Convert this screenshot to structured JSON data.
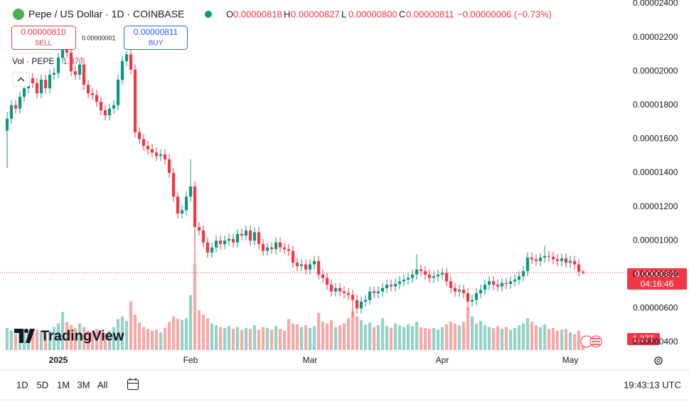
{
  "header": {
    "title": "Pepe / US Dollar · 1D · COINBASE",
    "ohlc": [
      {
        "label": "O",
        "value": "0.00000818"
      },
      {
        "label": "H",
        "value": "0.00000827"
      },
      {
        "label": "L",
        "value": "0.00000800"
      },
      {
        "label": "C",
        "value": "0.00000811"
      }
    ],
    "change": "−0.00000006 (−0.73%)"
  },
  "trade": {
    "sell_price": "0.00000810",
    "sell": "SELL",
    "spread": "0.00000001",
    "buy_price": "0.00000811",
    "buy": "BUY"
  },
  "volume_legend": {
    "label": "Vol · PEPE",
    "value": "1.37T"
  },
  "price_tag": {
    "price": "0.00000811",
    "countdown": "04:16:46"
  },
  "logo": "TradingView",
  "toolbar": {
    "ranges": [
      "1D",
      "5D",
      "1M",
      "3M",
      "All"
    ],
    "time": "19:43:13 UTC"
  },
  "chart_data": {
    "type": "candlestick",
    "up_color": "#089981",
    "down_color": "#f23645",
    "grid": false,
    "ylim": [
      3.54e-06,
      2.421e-05
    ],
    "yticks": [
      {
        "value": 4e-06,
        "label": "0.00000400"
      },
      {
        "value": 6e-06,
        "label": "0.00000600"
      },
      {
        "value": 8e-06,
        "label": "0.00000800"
      },
      {
        "value": 1e-05,
        "label": "0.00001000"
      },
      {
        "value": 1.2e-05,
        "label": "0.00001200"
      },
      {
        "value": 1.4e-05,
        "label": "0.00001400"
      },
      {
        "value": 1.6e-05,
        "label": "0.00001600"
      },
      {
        "value": 1.8e-05,
        "label": "0.00001800"
      },
      {
        "value": 2e-05,
        "label": "0.00002000"
      },
      {
        "value": 2.2e-05,
        "label": "0.00002200"
      },
      {
        "value": 2.4e-05,
        "label": "0.00002400"
      }
    ],
    "xlim": [
      -1.67,
      145
    ],
    "xticks": [
      {
        "value": 12,
        "label": "2025"
      },
      {
        "value": 43,
        "label": "Feb"
      },
      {
        "value": 71,
        "label": "Mar"
      },
      {
        "value": 102,
        "label": "Apr"
      },
      {
        "value": 132,
        "label": "May"
      }
    ],
    "open": [
      1.65e-05,
      1.72e-05,
      1.8e-05,
      1.78e-05,
      1.85e-05,
      1.9e-05,
      1.96e-05,
      1.93e-05,
      1.87e-05,
      1.95e-05,
      1.9e-05,
      1.98e-05,
      1.99e-05,
      2.08e-05,
      2.16e-05,
      2.11e-05,
      2e-05,
      1.98e-05,
      2.04e-05,
      1.92e-05,
      1.87e-05,
      1.86e-05,
      1.82e-05,
      1.77e-05,
      1.74e-05,
      1.78e-05,
      1.8e-05,
      1.95e-05,
      2.06e-05,
      2.1e-05,
      2.01e-05,
      1.64e-05,
      1.6e-05,
      1.56e-05,
      1.54e-05,
      1.52e-05,
      1.5e-05,
      1.51e-05,
      1.48e-05,
      1.4e-05,
      1.26e-05,
      1.16e-05,
      1.18e-05,
      1.26e-05,
      1.32e-05,
      1.08e-05,
      1.06e-05,
      9.9e-06,
      9.3e-06,
      9.6e-06,
      1e-05,
      9.8e-06,
      1e-05,
      1.01e-05,
      9.9e-06,
      1.04e-05,
      1.03e-05,
      1.06e-05,
      1e-05,
      1.05e-05,
      9.8e-06,
      9.4e-06,
      9.6e-06,
      9.5e-06,
      9.9e-06,
      9.6e-06,
      9.5e-06,
      9.4e-06,
      8.7e-06,
      8.5e-06,
      8.6e-06,
      8.3e-06,
      8.6e-06,
      8.8e-06,
      8e-06,
      7.8e-06,
      7.4e-06,
      7e-06,
      7.2e-06,
      7e-06,
      6.9e-06,
      6.8e-06,
      6.5e-06,
      6e-06,
      6.4e-06,
      6.5e-06,
      7e-06,
      6.9e-06,
      7e-06,
      7.2e-06,
      7.4e-06,
      7.3e-06,
      7.45e-06,
      7.6e-06,
      7.7e-06,
      7.8e-06,
      8e-06,
      8.3e-06,
      8.2e-06,
      8e-06,
      7.8e-06,
      7.9e-06,
      8e-06,
      8.1e-06,
      7.6e-06,
      7.2e-06,
      7e-06,
      7.1e-06,
      6.9e-06,
      6.4e-06,
      6.5e-06,
      6.9e-06,
      7.1e-06,
      7.4e-06,
      7.6e-06,
      7.4e-06,
      7.3e-06,
      7.5e-06,
      7.45e-06,
      7.6e-06,
      7.7e-06,
      7.9e-06,
      8.2e-06,
      9e-06,
      8.9e-06,
      8.8e-06,
      9e-06,
      9.1e-06,
      9.05e-06,
      8.9e-06,
      8.8e-06,
      8.95e-06,
      8.7e-06,
      8.8e-06,
      8.6e-06,
      8.18e-06
    ],
    "high": [
      1.76e-05,
      1.83e-05,
      1.83e-05,
      1.88e-05,
      1.93e-05,
      1.99e-05,
      1.99e-05,
      1.96e-05,
      1.98e-05,
      1.98e-05,
      2.01e-05,
      2.02e-05,
      2.11e-05,
      2.2e-05,
      2.19e-05,
      2.14e-05,
      2.03e-05,
      2.07e-05,
      2.07e-05,
      1.95e-05,
      1.9e-05,
      1.89e-05,
      1.85e-05,
      1.8e-05,
      1.81e-05,
      1.83e-05,
      1.98e-05,
      2.09e-05,
      2.12e-05,
      2.13e-05,
      2.04e-05,
      1.67e-05,
      1.63e-05,
      1.59e-05,
      1.57e-05,
      1.55e-05,
      1.54e-05,
      1.54e-05,
      1.51e-05,
      1.43e-05,
      1.29e-05,
      1.21e-05,
      1.29e-05,
      1.48e-05,
      1.35e-05,
      1.11e-05,
      1.09e-05,
      1.02e-05,
      9.9e-06,
      1.03e-05,
      1.03e-05,
      1.03e-05,
      1.04e-05,
      1.04e-05,
      1.07e-05,
      1.07e-05,
      1.09e-05,
      1.09e-05,
      1.08e-05,
      1.08e-05,
      1.01e-05,
      9.9e-06,
      9.9e-06,
      1.02e-05,
      1.02e-05,
      9.9e-06,
      9.8e-06,
      9.7e-06,
      9e-06,
      8.9e-06,
      8.9e-06,
      8.9e-06,
      9.1e-06,
      9.1e-06,
      8.3e-06,
      8.1e-06,
      7.7e-06,
      7.5e-06,
      7.5e-06,
      7.3e-06,
      7.2e-06,
      7.1e-06,
      6.8e-06,
      6.7e-06,
      6.8e-06,
      7.3e-06,
      7.3e-06,
      7.3e-06,
      7.5e-06,
      7.7e-06,
      7.7e-06,
      7.75e-06,
      7.9e-06,
      8e-06,
      8.1e-06,
      8.3e-06,
      9.2e-06,
      8.6e-06,
      8.5e-06,
      8.3e-06,
      8.2e-06,
      8.3e-06,
      8.4e-06,
      8.4e-06,
      7.9e-06,
      7.5e-06,
      7.4e-06,
      7.4e-06,
      7.2e-06,
      6.8e-06,
      7.2e-06,
      7.4e-06,
      7.7e-06,
      7.9e-06,
      7.9e-06,
      7.7e-06,
      7.8e-06,
      7.8e-06,
      7.9e-06,
      8e-06,
      8.2e-06,
      8.5e-06,
      9.3e-06,
      9.3e-06,
      9.2e-06,
      9.3e-06,
      9.7e-06,
      9.4e-06,
      9.35e-06,
      9.2e-06,
      9.25e-06,
      9.25e-06,
      9.1e-06,
      9.1e-06,
      8.9e-06,
      8.27e-06
    ],
    "low": [
      1.43e-05,
      1.69e-05,
      1.75e-05,
      1.75e-05,
      1.82e-05,
      1.87e-05,
      1.9e-05,
      1.84e-05,
      1.84e-05,
      1.87e-05,
      1.87e-05,
      1.95e-05,
      1.96e-05,
      2.05e-05,
      2.08e-05,
      1.97e-05,
      1.95e-05,
      1.95e-05,
      1.89e-05,
      1.84e-05,
      1.83e-05,
      1.79e-05,
      1.74e-05,
      1.71e-05,
      1.71e-05,
      1.75e-05,
      1.77e-05,
      1.92e-05,
      2.03e-05,
      1.98e-05,
      1.61e-05,
      1.57e-05,
      1.53e-05,
      1.51e-05,
      1.49e-05,
      1.47e-05,
      1.47e-05,
      1.45e-05,
      1.37e-05,
      1.23e-05,
      1.13e-05,
      1.13e-05,
      1.15e-05,
      1.23e-05,
      8.7e-06,
      1.03e-05,
      9.6e-06,
      9e-06,
      9e-06,
      9.3e-06,
      9.5e-06,
      9.5e-06,
      9.7e-06,
      9.6e-06,
      9.6e-06,
      1e-05,
      1e-05,
      9.7e-06,
      9.7e-06,
      9.5e-06,
      9.1e-06,
      9.1e-06,
      9.2e-06,
      9.2e-06,
      9.3e-06,
      9.2e-06,
      9.1e-06,
      8.4e-06,
      8.2e-06,
      8.2e-06,
      8e-06,
      8e-06,
      8.3e-06,
      7.7e-06,
      7.5e-06,
      7.1e-06,
      6.7e-06,
      6.7e-06,
      6.7e-06,
      6.6e-06,
      6.5e-06,
      5.5e-06,
      5.7e-06,
      5.7e-06,
      6.1e-06,
      6.2e-06,
      6.6e-06,
      6.6e-06,
      6.7e-06,
      6.9e-06,
      7e-06,
      7e-06,
      7.15e-06,
      7.3e-06,
      7.4e-06,
      7.5e-06,
      7.7e-06,
      7.9e-06,
      7.7e-06,
      7.5e-06,
      7.5e-06,
      7.6e-06,
      7.7e-06,
      7.3e-06,
      6.9e-06,
      6.7e-06,
      6.7e-06,
      6.6e-06,
      5.9e-06,
      6.1e-06,
      6.2e-06,
      6.6e-06,
      6.8e-06,
      7.1e-06,
      7.1e-06,
      7e-06,
      7e-06,
      7.15e-06,
      7.15e-06,
      7.3e-06,
      7.4e-06,
      7.6e-06,
      7.9e-06,
      8.6e-06,
      8.5e-06,
      8.5e-06,
      8.7e-06,
      8.75e-06,
      8.6e-06,
      8.5e-06,
      8.5e-06,
      8.4e-06,
      8.4e-06,
      8.3e-06,
      7.9e-06,
      8e-06
    ],
    "close": [
      1.72e-05,
      1.8e-05,
      1.78e-05,
      1.85e-05,
      1.9e-05,
      1.96e-05,
      1.93e-05,
      1.87e-05,
      1.95e-05,
      1.9e-05,
      1.98e-05,
      1.99e-05,
      2.08e-05,
      2.16e-05,
      2.11e-05,
      2e-05,
      1.98e-05,
      2.04e-05,
      1.92e-05,
      1.87e-05,
      1.86e-05,
      1.82e-05,
      1.77e-05,
      1.74e-05,
      1.78e-05,
      1.8e-05,
      1.95e-05,
      2.06e-05,
      2.1e-05,
      2.01e-05,
      1.64e-05,
      1.6e-05,
      1.56e-05,
      1.54e-05,
      1.52e-05,
      1.5e-05,
      1.51e-05,
      1.48e-05,
      1.4e-05,
      1.26e-05,
      1.16e-05,
      1.18e-05,
      1.26e-05,
      1.32e-05,
      1.08e-05,
      1.06e-05,
      9.9e-06,
      9.3e-06,
      9.6e-06,
      1e-05,
      9.8e-06,
      1e-05,
      1.01e-05,
      9.9e-06,
      1.04e-05,
      1.03e-05,
      1.06e-05,
      1e-05,
      1.05e-05,
      9.8e-06,
      9.4e-06,
      9.6e-06,
      9.5e-06,
      9.9e-06,
      9.6e-06,
      9.5e-06,
      9.4e-06,
      8.7e-06,
      8.5e-06,
      8.6e-06,
      8.3e-06,
      8.6e-06,
      8.8e-06,
      8e-06,
      7.8e-06,
      7.4e-06,
      7e-06,
      7.2e-06,
      7e-06,
      6.9e-06,
      6.8e-06,
      6.5e-06,
      6e-06,
      6.4e-06,
      6.5e-06,
      7e-06,
      6.9e-06,
      7e-06,
      7.2e-06,
      7.4e-06,
      7.3e-06,
      7.45e-06,
      7.6e-06,
      7.7e-06,
      7.8e-06,
      8e-06,
      8.3e-06,
      8.2e-06,
      8e-06,
      7.8e-06,
      7.9e-06,
      8e-06,
      8.1e-06,
      7.6e-06,
      7.2e-06,
      7e-06,
      7.1e-06,
      6.9e-06,
      6.4e-06,
      6.5e-06,
      6.9e-06,
      7.1e-06,
      7.4e-06,
      7.6e-06,
      7.4e-06,
      7.3e-06,
      7.5e-06,
      7.45e-06,
      7.6e-06,
      7.7e-06,
      7.9e-06,
      8.2e-06,
      9e-06,
      8.9e-06,
      8.8e-06,
      9e-06,
      9.1e-06,
      9.05e-06,
      8.9e-06,
      8.8e-06,
      8.95e-06,
      8.7e-06,
      8.8e-06,
      8.6e-06,
      8.17e-06,
      8.11e-06
    ],
    "volume": [
      2500000000000.0,
      2200000000000.0,
      1800000000000.0,
      2000000000000.0,
      2400000000000.0,
      2100000000000.0,
      1900000000000.0,
      2300000000000.0,
      2000000000000.0,
      1800000000000.0,
      2200000000000.0,
      2600000000000.0,
      3000000000000.0,
      4300000000000.0,
      3200000000000.0,
      2800000000000.0,
      2500000000000.0,
      3000000000000.0,
      2600000000000.0,
      2200000000000.0,
      2000000000000.0,
      2400000000000.0,
      2100000000000.0,
      1900000000000.0,
      2200000000000.0,
      2600000000000.0,
      3500000000000.0,
      3800000000000.0,
      3300000000000.0,
      5500000000000.0,
      4000000000000.0,
      3100000000000.0,
      2600000000000.0,
      2400000000000.0,
      2200000000000.0,
      2300000000000.0,
      2000000000000.0,
      2500000000000.0,
      3200000000000.0,
      3800000000000.0,
      3500000000000.0,
      3400000000000.0,
      3600000000000.0,
      6200000000000.0,
      9800000000000.0,
      4500000000000.0,
      4000000000000.0,
      3600000000000.0,
      3000000000000.0,
      2800000000000.0,
      2600000000000.0,
      2500000000000.0,
      2700000000000.0,
      2400000000000.0,
      2600000000000.0,
      2300000000000.0,
      2500000000000.0,
      2400000000000.0,
      2800000000000.0,
      2300000000000.0,
      2600000000000.0,
      2500000000000.0,
      2300000000000.0,
      2700000000000.0,
      2400000000000.0,
      2200000000000.0,
      3500000000000.0,
      3000000000000.0,
      2900000000000.0,
      2600000000000.0,
      2800000000000.0,
      2500000000000.0,
      2700000000000.0,
      4200000000000.0,
      3200000000000.0,
      3000000000000.0,
      3400000000000.0,
      2600000000000.0,
      2800000000000.0,
      3000000000000.0,
      3600000000000.0,
      4400000000000.0,
      3800000000000.0,
      3400000000000.0,
      2900000000000.0,
      3100000000000.0,
      2600000000000.0,
      2800000000000.0,
      3600000000000.0,
      2700000000000.0,
      2500000000000.0,
      3000000000000.0,
      2800000000000.0,
      2600000000000.0,
      2900000000000.0,
      2700000000000.0,
      3200000000000.0,
      2600000000000.0,
      2500000000000.0,
      2400000000000.0,
      2500000000000.0,
      2300000000000.0,
      2600000000000.0,
      2900000000000.0,
      3200000000000.0,
      3000000000000.0,
      2800000000000.0,
      3200000000000.0,
      4800000000000.0,
      3800000000000.0,
      3000000000000.0,
      3300000000000.0,
      2800000000000.0,
      2600000000000.0,
      2500000000000.0,
      2700000000000.0,
      2400000000000.0,
      2600000000000.0,
      2300000000000.0,
      2500000000000.0,
      2800000000000.0,
      3000000000000.0,
      3600000000000.0,
      3200000000000.0,
      2800000000000.0,
      2600000000000.0,
      2900000000000.0,
      2400000000000.0,
      2500000000000.0,
      2200000000000.0,
      2300000000000.0,
      2400000000000.0,
      2000000000000.0,
      1800000000000.0,
      2200000000000.0,
      1370000000000.0
    ]
  }
}
